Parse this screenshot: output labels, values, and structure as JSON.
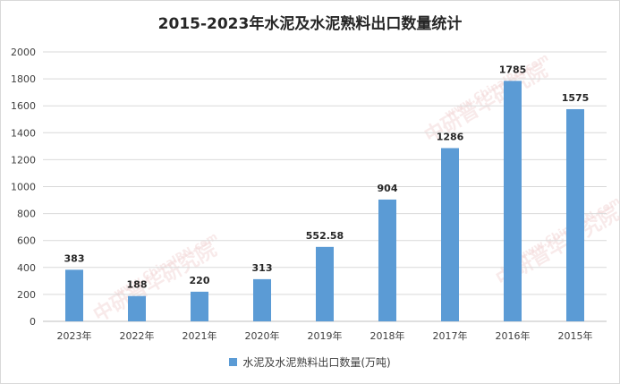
{
  "chart_data": {
    "type": "bar",
    "title": "2015-2023年水泥及水泥熟料出口数量统计",
    "categories": [
      "2023年",
      "2022年",
      "2021年",
      "2020年",
      "2019年",
      "2018年",
      "2017年",
      "2016年",
      "2015年"
    ],
    "series": [
      {
        "name": "水泥及水泥熟料出口数量(万吨)",
        "values": [
          383,
          188,
          220,
          313,
          552.58,
          904,
          1286,
          1785,
          1575
        ],
        "labels": [
          "383",
          "188",
          "220",
          "313",
          "552.58",
          "904",
          "1286",
          "1785",
          "1575"
        ],
        "color": "#5b9bd5"
      }
    ],
    "ylim": [
      0,
      2000
    ],
    "yticks": [
      0,
      200,
      400,
      600,
      800,
      1000,
      1200,
      1400,
      1600,
      1800,
      2000
    ],
    "grid": true,
    "legend_position": "bottom"
  },
  "watermark": {
    "text": "中研普华研究院",
    "url_text": "www.ChinaIRN.com"
  }
}
